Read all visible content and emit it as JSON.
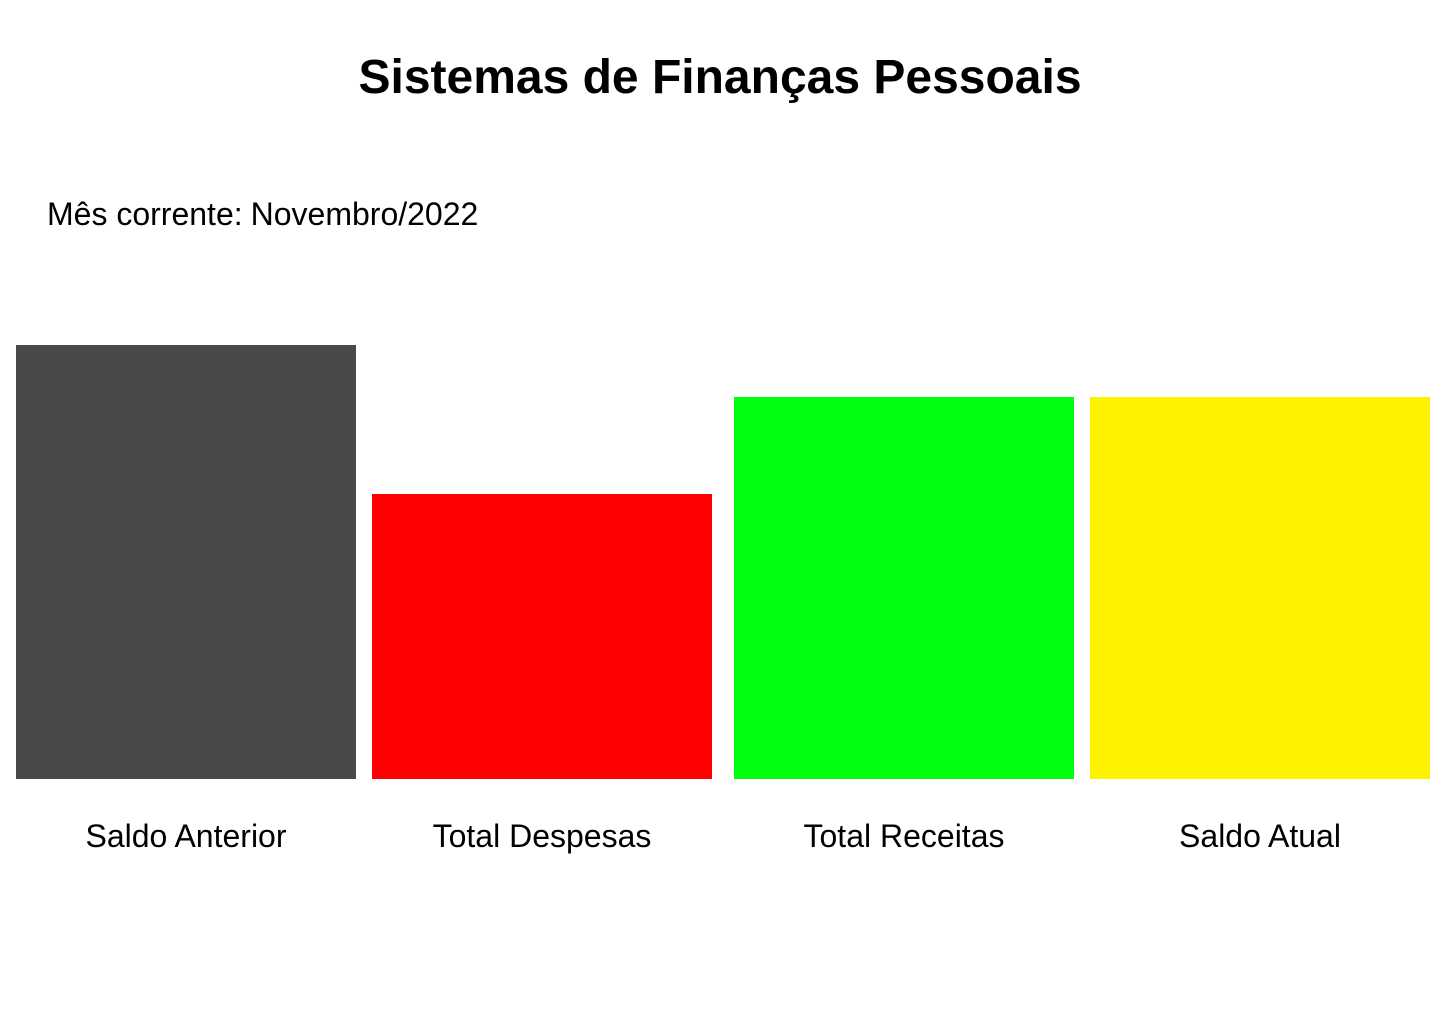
{
  "page": {
    "title": "Sistemas de Finanças Pessoais",
    "current_month_label": "Mês corrente:",
    "current_month_value": "Novembro/2022"
  },
  "summary": {
    "items": [
      {
        "label": "Saldo Anterior",
        "color": "#494949",
        "relative_level": 1.0
      },
      {
        "label": "Total Despesas",
        "color": "#ff0000",
        "relative_level": 0.656
      },
      {
        "label": "Total Receitas",
        "color": "#00ff11",
        "relative_level": 0.88
      },
      {
        "label": "Saldo Atual",
        "color": "#fff200",
        "relative_level": 0.88
      }
    ]
  }
}
